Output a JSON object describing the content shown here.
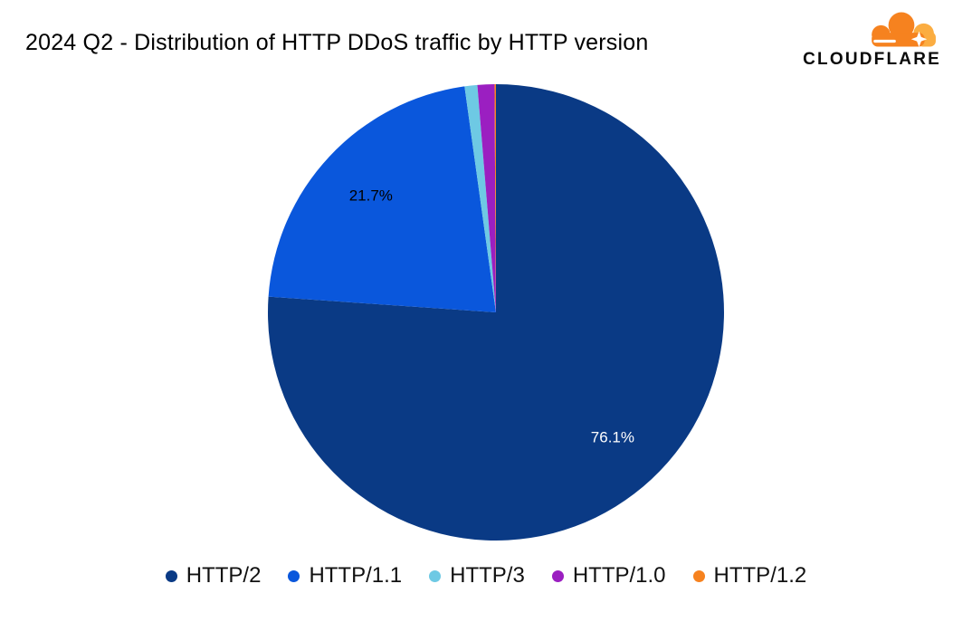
{
  "logo": {
    "text": "CLOUDFLARE",
    "cloud_color": "#f6821f",
    "cloud_light_color": "#fbad41"
  },
  "chart_data": {
    "type": "pie",
    "title": "2024 Q2 - Distribution of HTTP DDoS traffic by HTTP version",
    "categories": [
      "HTTP/2",
      "HTTP/1.1",
      "HTTP/3",
      "HTTP/1.0",
      "HTTP/1.2"
    ],
    "values": [
      76.1,
      21.7,
      0.9,
      1.2,
      0.1
    ],
    "unit": "%",
    "colors": [
      "#0a3a85",
      "#0a57dc",
      "#6ec9e4",
      "#9b1fc1",
      "#f6821f"
    ],
    "slice_labels": [
      "76.1%",
      "21.7%",
      "",
      "",
      ""
    ],
    "slice_label_colors": [
      "#ffffff",
      "#000000",
      "",
      "",
      ""
    ],
    "start_angle_deg": 0,
    "direction": "clockwise",
    "legend_position": "bottom",
    "label_radius_ratio": 0.75,
    "grid": false
  }
}
